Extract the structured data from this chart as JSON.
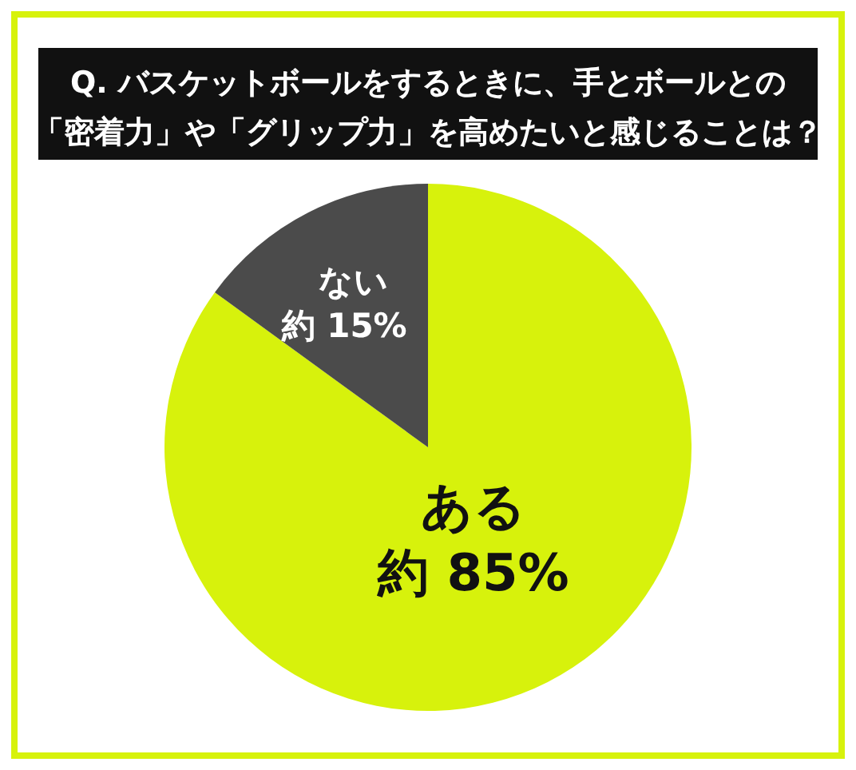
{
  "chart_data": {
    "type": "pie",
    "title": "Q. バスケットボールをするときに、手とボールとの「密着力」や「グリップ力」を高めたいと感じることは？",
    "categories": [
      "ある",
      "ない"
    ],
    "values": [
      85,
      15
    ],
    "colors": [
      "#d7f20c",
      "#4b4b4b"
    ],
    "value_labels": [
      "約 85%",
      "約 15%"
    ]
  }
}
